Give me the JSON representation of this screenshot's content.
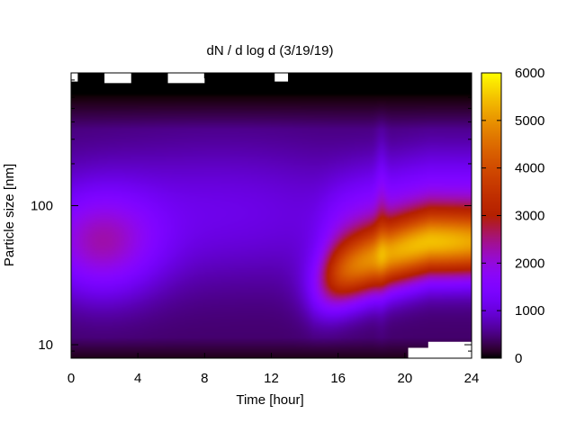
{
  "chart_data": {
    "type": "heatmap",
    "title": "dN / d log d (3/19/19)",
    "xlabel": "Time [hour]",
    "ylabel": "Particle size [nm]",
    "xlim": [
      0,
      24
    ],
    "ylim": [
      8,
      900
    ],
    "y_scale": "log",
    "x_ticks": [
      0,
      4,
      8,
      12,
      16,
      20,
      24
    ],
    "x_tick_labels": [
      "0",
      "4",
      "8",
      "12",
      "16",
      "20",
      "24"
    ],
    "y_ticks": [
      10,
      100
    ],
    "y_tick_labels": [
      "10",
      "100"
    ],
    "colorbar": {
      "range": [
        0,
        6000
      ],
      "ticks": [
        0,
        1000,
        2000,
        3000,
        4000,
        5000,
        6000
      ],
      "tick_labels": [
        "0",
        "1000",
        "2000",
        "3000",
        "4000",
        "5000",
        "6000"
      ],
      "colormap": "gnuplot-pm3d"
    },
    "grid": false,
    "features": [
      {
        "description_free": true,
        "time_range": [
          0,
          4
        ],
        "size_mode": 50,
        "peak_value": 1900
      },
      {
        "description_free": true,
        "time_range": [
          14.5,
          24
        ],
        "size_mode": 50,
        "peak_value": 5000
      }
    ]
  }
}
